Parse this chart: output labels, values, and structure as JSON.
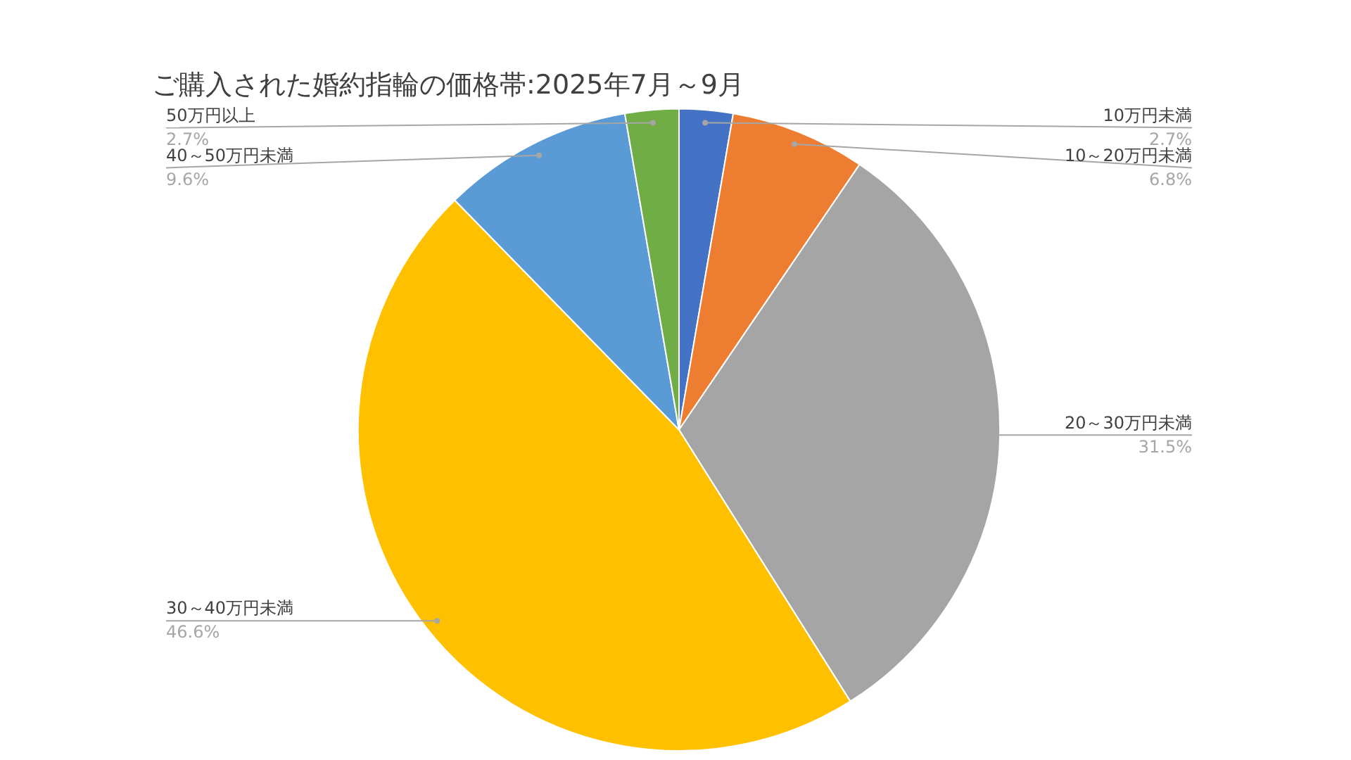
{
  "chart_data": {
    "type": "pie",
    "title": "ご購入された婚約指輪の価格帯:2025年7月～9月",
    "categories": [
      "10万円未満",
      "10～20万円未満",
      "20～30万円未満",
      "30～40万円未満",
      "40～50万円未満",
      "50万円以上"
    ],
    "values": [
      2.7,
      6.8,
      31.5,
      46.6,
      9.6,
      2.7
    ],
    "value_labels": [
      "2.7%",
      "6.8%",
      "31.5%",
      "46.6%",
      "9.6%",
      "2.7%"
    ],
    "colors": [
      "#4472c4",
      "#ed7d31",
      "#a5a5a5",
      "#ffc000",
      "#5b9bd5",
      "#70ad47"
    ],
    "legend": false
  }
}
